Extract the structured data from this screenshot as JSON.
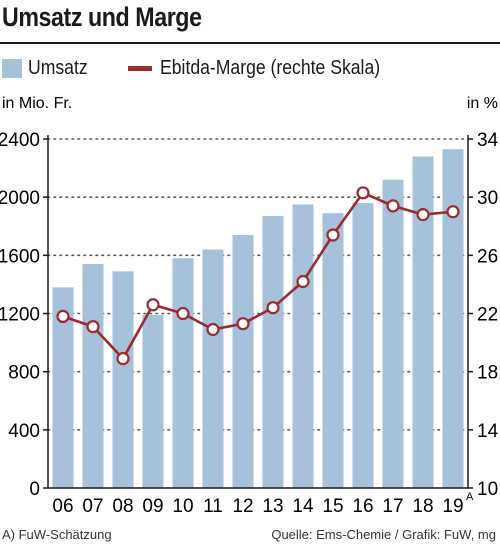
{
  "chart_data": {
    "type": "bar",
    "title": "Umsatz und Marge",
    "categories": [
      "06",
      "07",
      "08",
      "09",
      "10",
      "11",
      "12",
      "13",
      "14",
      "15",
      "16",
      "17",
      "18",
      "19"
    ],
    "category_superscripts": [
      "",
      "",
      "",
      "",
      "",
      "",
      "",
      "",
      "",
      "",
      "",
      "",
      "",
      "A"
    ],
    "series": [
      {
        "name": "Umsatz",
        "type": "bar",
        "axis": "left",
        "color": "#a6c1da",
        "values": [
          1380,
          1540,
          1490,
          1190,
          1580,
          1640,
          1740,
          1870,
          1950,
          1890,
          1960,
          2120,
          2280,
          2330
        ]
      },
      {
        "name": "Ebitda-Marge (rechte Skala)",
        "type": "line",
        "axis": "right",
        "color": "#9b2a2f",
        "values": [
          21.8,
          21.1,
          18.9,
          22.6,
          22.0,
          20.9,
          21.3,
          22.4,
          24.2,
          27.4,
          30.3,
          29.4,
          28.8,
          29.0
        ]
      }
    ],
    "left_axis": {
      "label": "in Mio. Fr.",
      "min": 0,
      "max": 2400,
      "ticks": [
        0,
        400,
        800,
        1200,
        1600,
        2000,
        2400
      ]
    },
    "right_axis": {
      "label": "in %",
      "min": 10,
      "max": 34,
      "ticks": [
        10,
        14,
        18,
        22,
        26,
        30,
        34
      ]
    },
    "grid": "dotted-horizontal",
    "legend_position": "top-left"
  },
  "footnote": "A) FuW-Schätzung",
  "source": "Quelle: Ems-Chemie / Grafik: FuW, mg"
}
